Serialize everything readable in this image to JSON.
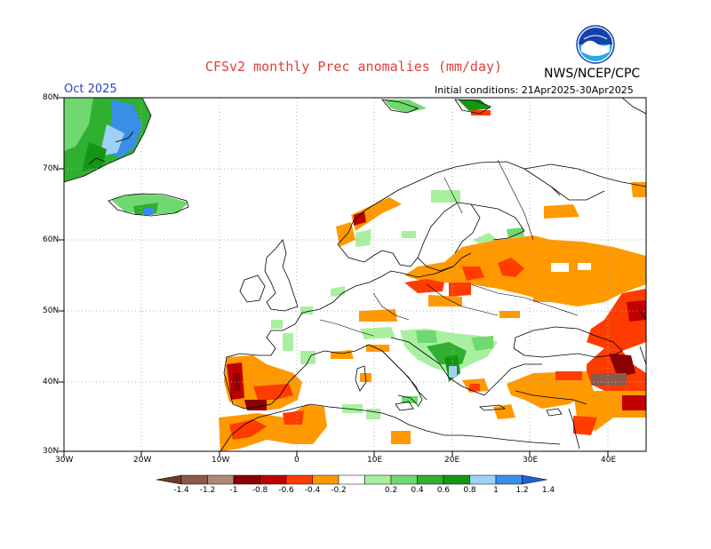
{
  "title": "CFSv2 monthly Prec anomalies (mm/day)",
  "organization": "NWS/NCEP/CPC",
  "logo_text": "NOAA",
  "forecast_month": "Oct 2025",
  "initial_conditions": "Initial conditions: 21Apr2025-30Apr2025",
  "lat_ticks": [
    "80N",
    "70N",
    "60N",
    "50N",
    "40N",
    "30N"
  ],
  "lon_ticks": [
    "30W",
    "20W",
    "10W",
    "0",
    "10E",
    "20E",
    "30E",
    "40E"
  ],
  "colorbar": {
    "labels": [
      "-1.4",
      "-1.2",
      "-1",
      "-0.8",
      "-0.6",
      "-0.4",
      "-0.2",
      "0.2",
      "0.4",
      "0.6",
      "0.8",
      "1",
      "1.2",
      "1.4"
    ],
    "colors": [
      "#6b3a2a",
      "#8c5a4a",
      "#b08878",
      "#8b0000",
      "#c00000",
      "#ff3c00",
      "#ff9900",
      "#ffffff",
      "#a8f0a0",
      "#70d870",
      "#30b030",
      "#149614",
      "#9fd1f7",
      "#3a8ee6",
      "#1f5fd8"
    ]
  },
  "colors": {
    "title": "#e0403a",
    "month": "#2a40c8",
    "grid": "#b0b0b0"
  }
}
